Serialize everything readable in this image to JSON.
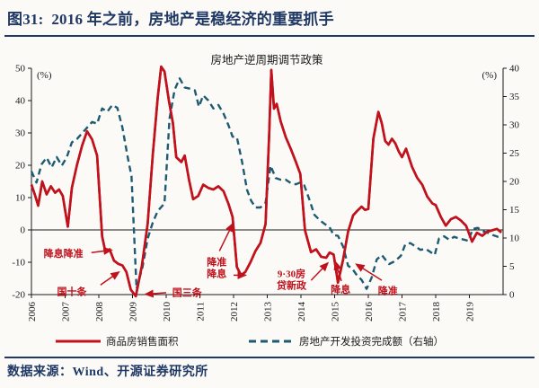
{
  "header": {
    "figure_title": "图31:  2016 年之前，房地产是稳经济的重要抓手"
  },
  "footer": {
    "source": "数据来源：Wind、开源证券研究所"
  },
  "colors": {
    "accent_navy": "#1F3864",
    "series_red": "#C0111C",
    "series_blue": "#1E5B73",
    "axis_black": "#1a1a1a"
  },
  "chart_data": {
    "type": "line",
    "title": "房地产逆周期调节政策",
    "left_axis": {
      "label": "(%)",
      "min": -20,
      "max": 50,
      "step": 10
    },
    "right_axis": {
      "label": "(%)",
      "min": 0,
      "max": 40,
      "step": 5
    },
    "x_axis": {
      "start": 2006,
      "end": 2020,
      "tick_years": [
        2006,
        2007,
        2008,
        2009,
        2010,
        2011,
        2012,
        2013,
        2014,
        2015,
        2016,
        2017,
        2018,
        2019
      ]
    },
    "grid": "zero-line-only",
    "legend_position": "bottom",
    "series": [
      {
        "name": "商品房销售面积",
        "axis": "left",
        "color": "#C0111C",
        "style": "solid",
        "points": [
          [
            2006.0,
            14
          ],
          [
            2006.1,
            11
          ],
          [
            2006.2,
            7.5
          ],
          [
            2006.32,
            15
          ],
          [
            2006.45,
            11
          ],
          [
            2006.58,
            13.5
          ],
          [
            2006.7,
            11.5
          ],
          [
            2006.82,
            12.5
          ],
          [
            2006.93,
            10.5
          ],
          [
            2007.08,
            1
          ],
          [
            2007.2,
            13
          ],
          [
            2007.35,
            20
          ],
          [
            2007.5,
            26
          ],
          [
            2007.65,
            30.5
          ],
          [
            2007.8,
            28
          ],
          [
            2007.95,
            23
          ],
          [
            2008.1,
            -2
          ],
          [
            2008.2,
            -7
          ],
          [
            2008.32,
            -6
          ],
          [
            2008.45,
            -9.5
          ],
          [
            2008.58,
            -10.5
          ],
          [
            2008.7,
            -11
          ],
          [
            2008.82,
            -13
          ],
          [
            2008.95,
            -18.5
          ],
          [
            2009.1,
            -20.5
          ],
          [
            2009.28,
            -11
          ],
          [
            2009.45,
            2
          ],
          [
            2009.6,
            23
          ],
          [
            2009.75,
            41
          ],
          [
            2009.85,
            50.5
          ],
          [
            2009.95,
            49
          ],
          [
            2010.08,
            40
          ],
          [
            2010.2,
            33
          ],
          [
            2010.3,
            22.5
          ],
          [
            2010.45,
            21
          ],
          [
            2010.55,
            23
          ],
          [
            2010.68,
            15.4
          ],
          [
            2010.8,
            9.5
          ],
          [
            2010.95,
            10.5
          ],
          [
            2011.1,
            14
          ],
          [
            2011.25,
            13
          ],
          [
            2011.4,
            12.5
          ],
          [
            2011.55,
            13.5
          ],
          [
            2011.7,
            12
          ],
          [
            2011.85,
            8
          ],
          [
            2011.97,
            4
          ],
          [
            2012.1,
            -11.5
          ],
          [
            2012.22,
            -14
          ],
          [
            2012.35,
            -13
          ],
          [
            2012.5,
            -10
          ],
          [
            2012.65,
            -6.5
          ],
          [
            2012.8,
            -4
          ],
          [
            2012.95,
            1.8
          ],
          [
            2013.06,
            30
          ],
          [
            2013.12,
            49.5
          ],
          [
            2013.2,
            37.5
          ],
          [
            2013.28,
            39
          ],
          [
            2013.4,
            33.5
          ],
          [
            2013.55,
            28.7
          ],
          [
            2013.7,
            25
          ],
          [
            2013.85,
            21
          ],
          [
            2013.98,
            17.3
          ],
          [
            2014.12,
            -0.1
          ],
          [
            2014.3,
            -6.9
          ],
          [
            2014.45,
            -6
          ],
          [
            2014.6,
            -8.3
          ],
          [
            2014.75,
            -8.6
          ],
          [
            2014.85,
            -7
          ],
          [
            2014.97,
            -7.6
          ],
          [
            2015.1,
            -16.3
          ],
          [
            2015.25,
            -9.2
          ],
          [
            2015.4,
            -0.5
          ],
          [
            2015.55,
            4.5
          ],
          [
            2015.68,
            6
          ],
          [
            2015.8,
            7.2
          ],
          [
            2015.9,
            6.2
          ],
          [
            2016.0,
            6.5
          ],
          [
            2016.15,
            28.2
          ],
          [
            2016.3,
            36.5
          ],
          [
            2016.4,
            33
          ],
          [
            2016.5,
            27.5
          ],
          [
            2016.6,
            26.4
          ],
          [
            2016.7,
            28.2
          ],
          [
            2016.8,
            26.8
          ],
          [
            2016.9,
            24.3
          ],
          [
            2017.0,
            22.5
          ],
          [
            2017.12,
            25.1
          ],
          [
            2017.3,
            19.5
          ],
          [
            2017.45,
            16.1
          ],
          [
            2017.6,
            14
          ],
          [
            2017.75,
            10.3
          ],
          [
            2017.9,
            8.2
          ],
          [
            2018.0,
            7.7
          ],
          [
            2018.15,
            4.1
          ],
          [
            2018.3,
            1.3
          ],
          [
            2018.45,
            3.3
          ],
          [
            2018.6,
            4
          ],
          [
            2018.75,
            2.9
          ],
          [
            2018.9,
            1.3
          ],
          [
            2019.08,
            -3.6
          ],
          [
            2019.22,
            -0.9
          ],
          [
            2019.38,
            -1.8
          ],
          [
            2019.52,
            -0.6
          ],
          [
            2019.68,
            -0.1
          ],
          [
            2019.82,
            0.3
          ],
          [
            2019.95,
            -0.8
          ]
        ]
      },
      {
        "name": "房地产开发投资完成额（右轴）",
        "axis": "right",
        "color": "#1E5B73",
        "style": "dashed",
        "points": [
          [
            2006.0,
            21.8
          ],
          [
            2006.15,
            19.8
          ],
          [
            2006.3,
            23
          ],
          [
            2006.45,
            24.2
          ],
          [
            2006.6,
            22.5
          ],
          [
            2006.75,
            24.3
          ],
          [
            2006.9,
            22.8
          ],
          [
            2007.05,
            24.3
          ],
          [
            2007.2,
            26.9
          ],
          [
            2007.35,
            27.5
          ],
          [
            2007.5,
            28.5
          ],
          [
            2007.65,
            29.5
          ],
          [
            2007.8,
            30.5
          ],
          [
            2007.95,
            30.2
          ],
          [
            2008.1,
            32.9
          ],
          [
            2008.25,
            32.3
          ],
          [
            2008.4,
            33.5
          ],
          [
            2008.55,
            33
          ],
          [
            2008.7,
            29.5
          ],
          [
            2008.85,
            24.5
          ],
          [
            2008.97,
            20.9
          ],
          [
            2009.12,
            1
          ],
          [
            2009.3,
            4.9
          ],
          [
            2009.45,
            9.9
          ],
          [
            2009.6,
            12.7
          ],
          [
            2009.75,
            14.8
          ],
          [
            2009.95,
            16.1
          ],
          [
            2010.1,
            31.1
          ],
          [
            2010.25,
            36.2
          ],
          [
            2010.4,
            38.2
          ],
          [
            2010.55,
            36.6
          ],
          [
            2010.7,
            36.4
          ],
          [
            2010.85,
            36.1
          ],
          [
            2010.97,
            33.2
          ],
          [
            2011.1,
            35.2
          ],
          [
            2011.25,
            34.3
          ],
          [
            2011.4,
            32.9
          ],
          [
            2011.55,
            33.5
          ],
          [
            2011.7,
            32
          ],
          [
            2011.85,
            29.9
          ],
          [
            2011.97,
            27.9
          ],
          [
            2012.1,
            27.8
          ],
          [
            2012.25,
            23.5
          ],
          [
            2012.4,
            18.5
          ],
          [
            2012.52,
            16.6
          ],
          [
            2012.65,
            15.4
          ],
          [
            2012.8,
            15.4
          ],
          [
            2012.95,
            16.2
          ],
          [
            2013.1,
            22.8
          ],
          [
            2013.25,
            20.6
          ],
          [
            2013.4,
            20.3
          ],
          [
            2013.55,
            20.3
          ],
          [
            2013.7,
            19.7
          ],
          [
            2013.85,
            19.5
          ],
          [
            2013.97,
            19.8
          ],
          [
            2014.1,
            19.3
          ],
          [
            2014.25,
            16.8
          ],
          [
            2014.4,
            14.1
          ],
          [
            2014.55,
            13.2
          ],
          [
            2014.7,
            12.5
          ],
          [
            2014.85,
            11.9
          ],
          [
            2014.97,
            10.5
          ],
          [
            2015.1,
            10.4
          ],
          [
            2015.25,
            8.5
          ],
          [
            2015.4,
            5.1
          ],
          [
            2015.52,
            4.6
          ],
          [
            2015.65,
            3.5
          ],
          [
            2015.8,
            2.6
          ],
          [
            2015.95,
            1
          ],
          [
            2016.1,
            3
          ],
          [
            2016.25,
            6.2
          ],
          [
            2016.4,
            7
          ],
          [
            2016.52,
            6.1
          ],
          [
            2016.62,
            5.4
          ],
          [
            2016.75,
            5.8
          ],
          [
            2016.9,
            6.5
          ],
          [
            2016.97,
            6.9
          ],
          [
            2017.1,
            8.9
          ],
          [
            2017.25,
            9.1
          ],
          [
            2017.4,
            8.5
          ],
          [
            2017.55,
            7.9
          ],
          [
            2017.7,
            8.1
          ],
          [
            2017.85,
            7.5
          ],
          [
            2017.97,
            7
          ],
          [
            2018.1,
            9.9
          ],
          [
            2018.25,
            10.3
          ],
          [
            2018.4,
            9.7
          ],
          [
            2018.55,
            10.2
          ],
          [
            2018.7,
            9.9
          ],
          [
            2018.85,
            9.7
          ],
          [
            2018.97,
            9.5
          ],
          [
            2019.1,
            11.6
          ],
          [
            2019.25,
            11.8
          ],
          [
            2019.4,
            11.2
          ],
          [
            2019.55,
            10.9
          ],
          [
            2019.7,
            10.5
          ],
          [
            2019.85,
            10.2
          ],
          [
            2019.95,
            10.1
          ]
        ]
      }
    ],
    "annotations": [
      {
        "lines": [
          "降息降准"
        ],
        "x": 2006.95,
        "y": -7.2,
        "arrows": [
          [
            2007.78,
            -7.0,
            2008.38,
            -6.2
          ]
        ]
      },
      {
        "lines": [
          "国十条"
        ],
        "x": 2007.2,
        "y": -19.0,
        "arrows": [
          [
            2008.05,
            -17.0,
            2008.6,
            -13.0
          ]
        ]
      },
      {
        "lines": [
          "国三条"
        ],
        "x": 2010.62,
        "y": -19.3,
        "arrows": [
          [
            2010.0,
            -19.4,
            2009.38,
            -19.9
          ]
        ]
      },
      {
        "lines": [
          "降准",
          "降息"
        ],
        "x": 2011.5,
        "y": -11.7,
        "arrows": [
          [
            2011.58,
            -6.5,
            2011.98,
            2.0
          ],
          [
            2012.0,
            -14.0,
            2012.36,
            -14.0
          ]
        ]
      },
      {
        "lines": [
          "9·30房",
          "贷新政"
        ],
        "x": 2013.72,
        "y": -15.3,
        "arrows": [
          [
            2014.3,
            -15.6,
            2014.8,
            -10.2
          ]
        ]
      },
      {
        "lines": [
          "降息"
        ],
        "x": 2015.18,
        "y": -18.4,
        "arrows": [
          [
            2015.2,
            -15.8,
            2015.02,
            -9.8
          ]
        ]
      },
      {
        "lines": [
          "降准"
        ],
        "x": 2016.58,
        "y": -18.7,
        "arrows": [
          [
            2016.4,
            -15.6,
            2015.64,
            -10.6
          ]
        ]
      }
    ],
    "legend": [
      {
        "label": "商品房销售面积",
        "style": "solid",
        "color": "#C0111C"
      },
      {
        "label": "房地产开发投资完成额（右轴）",
        "style": "dashed",
        "color": "#1E5B73"
      }
    ]
  }
}
